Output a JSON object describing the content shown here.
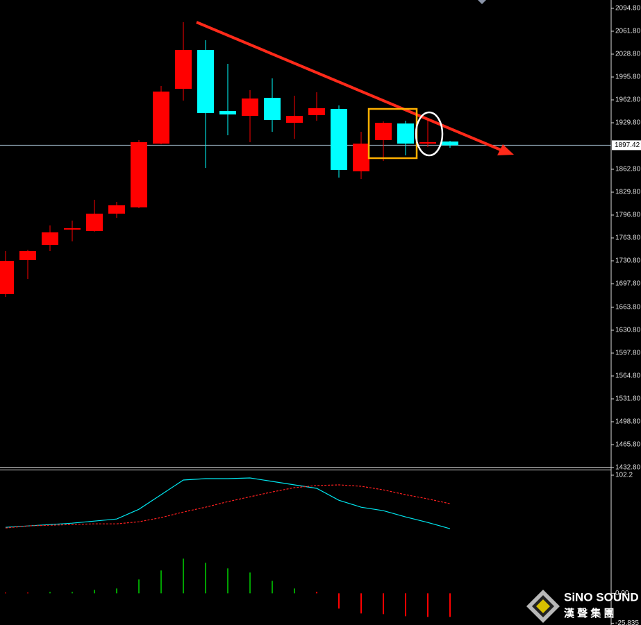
{
  "chart_data": [
    {
      "type": "candlestick",
      "open": [
        1682.8,
        1731.8,
        1753.8,
        1775.8,
        1773.8,
        1798.8,
        1807.8,
        1899.8,
        1978.8,
        2034.8,
        1946.8,
        1939.8,
        1965.8,
        1929.8,
        1940.8,
        1949.8,
        1859.8,
        1904.8,
        1928.8,
        1899.8,
        1902.8
      ],
      "high": [
        1744.8,
        1746.8,
        1781.8,
        1788.8,
        1818.8,
        1815.8,
        1904.8,
        1982.8,
        2074.8,
        2048.8,
        2014.8,
        1976.8,
        1993.8,
        1968.8,
        1973.8,
        1954.8,
        1916.8,
        1931.8,
        1932.8,
        1936.8,
        1903.8
      ],
      "low": [
        1678.8,
        1704.8,
        1744.8,
        1758.8,
        1772.8,
        1792.8,
        1806.8,
        1898.8,
        1961.8,
        1864.8,
        1911.8,
        1901.8,
        1916.8,
        1906.8,
        1932.8,
        1850.8,
        1848.8,
        1874.8,
        1882.8,
        1894.8,
        1893.8
      ],
      "close": [
        1730.8,
        1744.8,
        1771.8,
        1777.8,
        1798.8,
        1810.8,
        1901.8,
        1974.8,
        2034.8,
        1943.8,
        1941.8,
        1964.8,
        1933.8,
        1939.8,
        1950.8,
        1861.8,
        1899.8,
        1929.8,
        1899.8,
        1901.8,
        1897.42
      ],
      "up_color": "#ff0000",
      "down_color": "#00ffff",
      "ylim": [
        1433.8,
        2106.8
      ],
      "yticks": [
        {
          "value": 2094.8,
          "label": "2094.80"
        },
        {
          "value": 2061.8,
          "label": "2061.80"
        },
        {
          "value": 2028.8,
          "label": "2028.80"
        },
        {
          "value": 1995.8,
          "label": "1995.80"
        },
        {
          "value": 1962.8,
          "label": "1962.80"
        },
        {
          "value": 1929.8,
          "label": "1929.80"
        },
        {
          "value": 1862.8,
          "label": "1862.80"
        },
        {
          "value": 1829.8,
          "label": "1829.80"
        },
        {
          "value": 1796.8,
          "label": "1796.80"
        },
        {
          "value": 1763.8,
          "label": "1763.80"
        },
        {
          "value": 1730.8,
          "label": "1730.80"
        },
        {
          "value": 1697.8,
          "label": "1697.80"
        },
        {
          "value": 1663.8,
          "label": "1663.80"
        },
        {
          "value": 1630.8,
          "label": "1630.80"
        },
        {
          "value": 1597.8,
          "label": "1597.80"
        },
        {
          "value": 1564.8,
          "label": "1564.80"
        },
        {
          "value": 1531.8,
          "label": "1531.80"
        },
        {
          "value": 1498.8,
          "label": "1498.80"
        },
        {
          "value": 1465.8,
          "label": "1465.80"
        },
        {
          "value": 1432.8,
          "label": "1432.80"
        }
      ],
      "last_price": 1897.42
    },
    {
      "type": "line",
      "series": [
        {
          "type": "bar",
          "colors": [
            "#ff0000",
            "#ff0000",
            "#00a000",
            "#00a000",
            "#00a000",
            "#00a000",
            "#00a000",
            "#00a000",
            "#00a000",
            "#00a000",
            "#00a000",
            "#00a000",
            "#00a000",
            "#00a000",
            "#ff0000",
            "#ff0000",
            "#ff0000",
            "#ff0000",
            "#ff0000",
            "#ff0000",
            "#ff0000"
          ],
          "values": [
            0.6,
            0.6,
            1.2,
            1.2,
            3.0,
            4.2,
            12,
            19.8,
            30,
            26.4,
            21.6,
            18,
            10.8,
            4.2,
            1.2,
            -13.2,
            -17.4,
            -18,
            -19.8,
            -20.4,
            -20.4
          ]
        },
        {
          "type": "line",
          "color": "#00e5ee",
          "dashed": false,
          "values": [
            57.1,
            58.3,
            59.5,
            60.7,
            62.5,
            64.3,
            72.7,
            85.3,
            98.0,
            99.2,
            99.2,
            99.8,
            96.8,
            93.8,
            90.8,
            80.5,
            74.5,
            71.5,
            66.1,
            61.3,
            55.9
          ]
        },
        {
          "type": "line",
          "color": "#ff2020",
          "dashed": true,
          "values": [
            56.5,
            58.3,
            58.9,
            59.5,
            60.1,
            60.1,
            61.9,
            65.5,
            70.3,
            74.5,
            79.3,
            83.5,
            87.7,
            91.4,
            93.2,
            93.8,
            92.6,
            89.5,
            85.3,
            81.7,
            77.5
          ]
        }
      ],
      "ylim": [
        -26.8,
        106.4
      ],
      "yticks": [
        102.2,
        {
          "value": 0,
          "label": "0.00"
        },
        -25.835
      ]
    }
  ],
  "logo": {
    "name": "SiNO SOUND",
    "chinese": "漢 聲 集 團"
  }
}
